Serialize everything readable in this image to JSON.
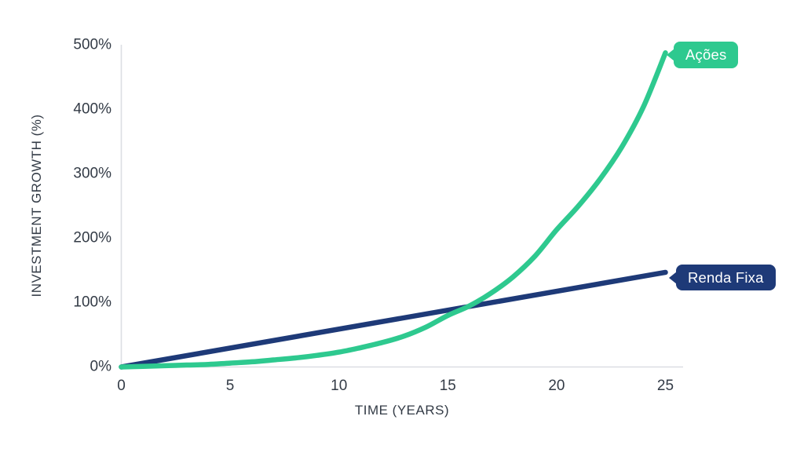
{
  "chart_data": {
    "type": "line",
    "title": "",
    "xlabel": "TIME (YEARS)",
    "ylabel": "INVESTMENT GROWTH (%)",
    "xlim": [
      0,
      25
    ],
    "ylim": [
      0,
      500
    ],
    "grid": false,
    "legend_position": "end-of-line bubble labels",
    "x_ticks": [
      0,
      5,
      10,
      15,
      20,
      25
    ],
    "y_ticks": [
      {
        "value": 0,
        "label": "0%"
      },
      {
        "value": 100,
        "label": "100%"
      },
      {
        "value": 200,
        "label": "200%"
      },
      {
        "value": 300,
        "label": "300%"
      },
      {
        "value": 400,
        "label": "400%"
      },
      {
        "value": 500,
        "label": "500%"
      }
    ],
    "series": [
      {
        "name": "Renda Fixa",
        "color": "#1E3A78",
        "shape": "linear",
        "points": [
          [
            0,
            0
          ],
          [
            25,
            147
          ]
        ]
      },
      {
        "name": "Ações",
        "color": "#2EC98F",
        "shape": "exponential",
        "points": [
          [
            0,
            0
          ],
          [
            1,
            1
          ],
          [
            2,
            2
          ],
          [
            3,
            3
          ],
          [
            4,
            4
          ],
          [
            5,
            6
          ],
          [
            6,
            8
          ],
          [
            7,
            11
          ],
          [
            8,
            14
          ],
          [
            9,
            18
          ],
          [
            10,
            23
          ],
          [
            11,
            30
          ],
          [
            12,
            38
          ],
          [
            13,
            48
          ],
          [
            14,
            62
          ],
          [
            15,
            80
          ],
          [
            16,
            95
          ],
          [
            17,
            115
          ],
          [
            18,
            140
          ],
          [
            19,
            172
          ],
          [
            20,
            213
          ],
          [
            21,
            250
          ],
          [
            22,
            292
          ],
          [
            23,
            342
          ],
          [
            24,
            405
          ],
          [
            25,
            488
          ]
        ]
      }
    ],
    "annotations": {
      "crossover": {
        "x": 16.3,
        "y": 97
      }
    }
  },
  "colors": {
    "acoes_green": "#2EC98F",
    "renda_fixa_navy": "#1E3A78",
    "axis_line": "#DCDEE3",
    "tick_text": "#333B46",
    "background": "#FFFFFF",
    "bubble_text": "#FFFFFF"
  }
}
